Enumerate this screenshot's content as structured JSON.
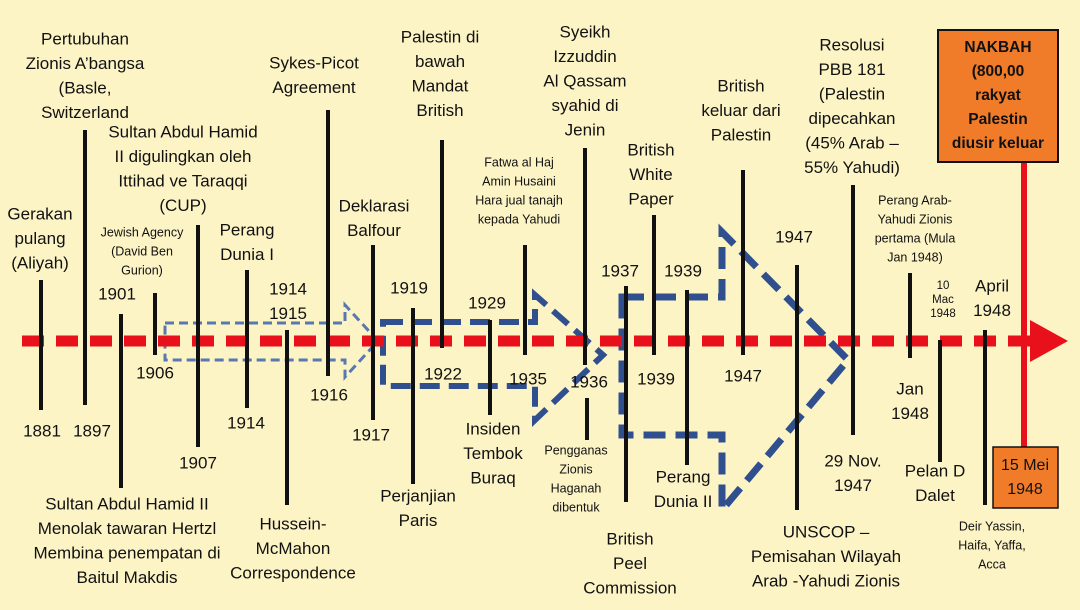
{
  "events": [
    {
      "above": [
        "Gerakan",
        "pulang",
        "(Aliyah)"
      ],
      "below": [
        "1881"
      ]
    },
    {
      "above": [
        "Pertubuhan",
        "Zionis A’bangsa",
        "(Basle,",
        "Switzerland"
      ],
      "below": [
        "1897"
      ]
    },
    {
      "above": [
        "Jewish Agency",
        "(David Ben",
        "Gurion)"
      ],
      "below": [
        "1906"
      ]
    },
    {
      "above": [
        "1901"
      ],
      "below": [
        "Sultan Abdul Hamid II",
        "Menolak tawaran Hertzl",
        "Membina penempatan di",
        "Baitul Makdis"
      ]
    },
    {
      "above": [
        "Sultan Abdul Hamid",
        "II digulingkan oleh",
        "Ittihad ve Taraqqi",
        "(CUP)"
      ],
      "below": [
        "1907"
      ]
    },
    {
      "above": [
        "Perang",
        "Dunia I"
      ],
      "below": [
        "1914"
      ]
    },
    {
      "above": [
        "1914",
        "1915"
      ],
      "below": [
        "Hussein-",
        "McMahon",
        "Correspondence"
      ]
    },
    {
      "above": [
        "Sykes-Picot",
        "Agreement"
      ],
      "below": [
        "1916"
      ]
    },
    {
      "above": [
        "Deklarasi",
        "Balfour"
      ],
      "below": [
        "1917"
      ]
    },
    {
      "above": [
        "1919"
      ],
      "below": [
        "Perjanjian",
        "Paris"
      ]
    },
    {
      "above": [
        "Palestin di",
        "bawah",
        "Mandat",
        "British"
      ],
      "below": [
        "1922"
      ]
    },
    {
      "above": [
        "1929"
      ],
      "below": [
        "Insiden",
        "Tembok",
        "Buraq"
      ]
    },
    {
      "above": [
        "Fatwa al Haj",
        "Amin Husaini",
        "Hara jual tanajh",
        "kepada Yahudi"
      ],
      "below": [
        "1935"
      ]
    },
    {
      "above": [
        "Syeikh",
        "Izzuddin",
        "Al Qassam",
        "syahid di",
        "Jenin"
      ],
      "below": [
        "1936"
      ]
    },
    {
      "above": [],
      "below": [
        "Pengganas",
        "Zionis",
        "Haganah",
        "dibentuk"
      ]
    },
    {
      "above": [
        "1937"
      ],
      "below": [
        "British",
        "Peel",
        "Commission"
      ]
    },
    {
      "above": [
        "British",
        "White",
        "Paper"
      ],
      "below": [
        "1939"
      ]
    },
    {
      "above": [
        "1939"
      ],
      "below": [
        "Perang",
        "Dunia II"
      ]
    },
    {
      "above": [
        "British",
        "keluar dari",
        "Palestin"
      ],
      "below": [
        "1947"
      ]
    },
    {
      "above": [
        "1947"
      ],
      "below": [
        "UNSCOP –",
        "Pemisahan Wilayah",
        "Arab -Yahudi Zionis"
      ]
    },
    {
      "above": [
        "Resolusi",
        "PBB 181",
        "(Palestin",
        "dipecahkan",
        "(45% Arab –",
        "55% Yahudi)"
      ],
      "below": [
        "29 Nov.",
        "1947"
      ]
    },
    {
      "above": [
        "Perang Arab-",
        "Yahudi Zionis",
        "pertama (Mula",
        "Jan 1948)"
      ],
      "below": [
        "Jan",
        "1948"
      ]
    },
    {
      "above": [
        "10",
        "Mac",
        "1948"
      ],
      "below": [
        "Pelan D",
        "Dalet"
      ]
    },
    {
      "above": [
        "April",
        "1948"
      ],
      "below": [
        "Deir Yassin,",
        "Haifa, Yaffa,",
        "Acca"
      ]
    }
  ],
  "nakbah": {
    "lines": [
      "NAKBAH",
      "(800,00",
      "rakyat",
      "Palestin",
      "diusir keluar"
    ]
  },
  "date": {
    "lines": [
      "15 Mei",
      "1948"
    ]
  }
}
